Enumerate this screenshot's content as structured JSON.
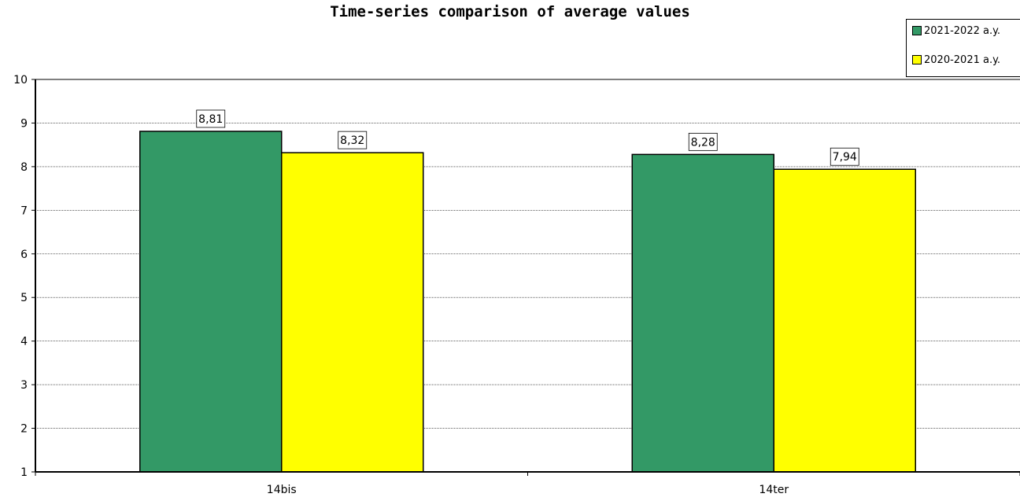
{
  "chart_data": {
    "type": "bar",
    "title": "Time-series comparison of average values",
    "categories": [
      "14bis",
      "14ter"
    ],
    "series": [
      {
        "name": "2021-2022 a.y.",
        "color": "#339966",
        "values": [
          8.81,
          8.28
        ],
        "labels": [
          "8,81",
          "8,28"
        ]
      },
      {
        "name": "2020-2021 a.y.",
        "color": "#ffff00",
        "values": [
          8.32,
          7.94
        ],
        "labels": [
          "8,32",
          "7,94"
        ]
      }
    ],
    "ylim": [
      1,
      10
    ],
    "yticks": [
      "1",
      "2",
      "3",
      "4",
      "5",
      "6",
      "7",
      "8",
      "9",
      "10"
    ],
    "xlabel": "",
    "ylabel": "",
    "grid": true,
    "legend_position": "top-right"
  }
}
